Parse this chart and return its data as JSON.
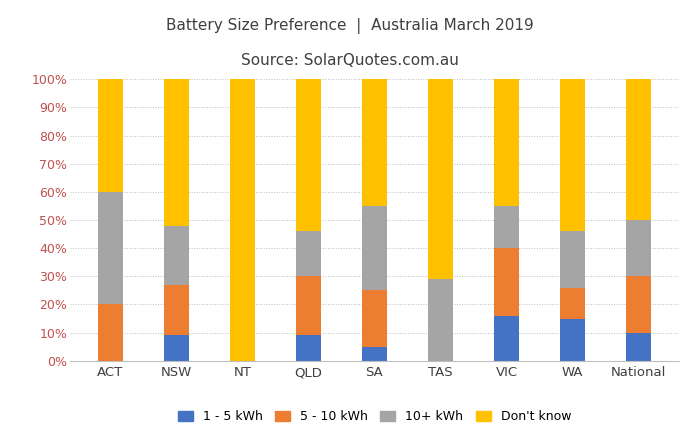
{
  "categories": [
    "ACT",
    "NSW",
    "NT",
    "QLD",
    "SA",
    "TAS",
    "VIC",
    "WA",
    "National"
  ],
  "series": {
    "1 - 5 kWh": [
      0,
      9,
      0,
      9,
      5,
      0,
      16,
      15,
      10
    ],
    "5 - 10 kWh": [
      20,
      18,
      0,
      21,
      20,
      0,
      24,
      11,
      20
    ],
    "10+ kWh": [
      40,
      21,
      0,
      16,
      30,
      29,
      15,
      20,
      20
    ],
    "Don't know": [
      40,
      52,
      100,
      54,
      45,
      71,
      45,
      54,
      50
    ]
  },
  "colors": {
    "1 - 5 kWh": "#4472C4",
    "5 - 10 kWh": "#ED7D31",
    "10+ kWh": "#A5A5A5",
    "Don't know": "#FFC000"
  },
  "title_line1": "Battery Size Preference  |  Australia March 2019",
  "title_line2": "Source: SolarQuotes.com.au",
  "ylabel_ticks": [
    0,
    10,
    20,
    30,
    40,
    50,
    60,
    70,
    80,
    90,
    100
  ],
  "ylim": [
    0,
    100
  ],
  "figsize": [
    7.0,
    4.4
  ],
  "dpi": 100,
  "bg_color": "#FFFFFF",
  "grid_color": "#BFBFBF",
  "tick_label_color": "#C0504D",
  "bar_width": 0.38,
  "title_fontsize": 11,
  "tick_fontsize": 9,
  "legend_fontsize": 9
}
